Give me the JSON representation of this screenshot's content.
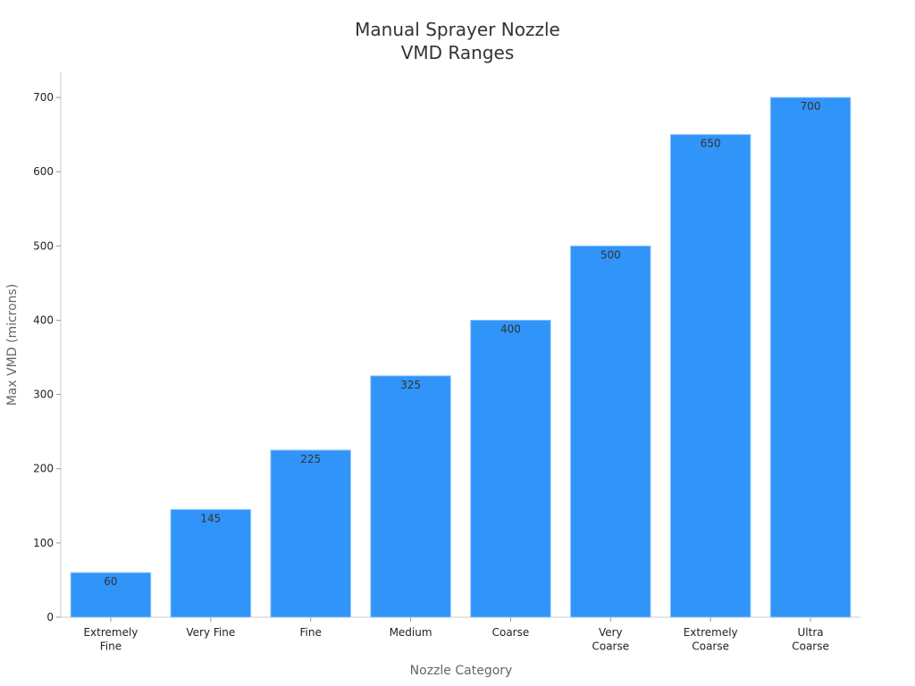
{
  "chart_data": {
    "type": "bar",
    "title": "Manual Sprayer Nozzle\nVMD Ranges",
    "xlabel": "Nozzle Category",
    "ylabel": "Max VMD (microns)",
    "categories": [
      "Extremely\nFine",
      "Very Fine",
      "Fine",
      "Medium",
      "Coarse",
      "Very\nCoarse",
      "Extremely\nCoarse",
      "Ultra\nCoarse"
    ],
    "values": [
      60,
      145,
      225,
      325,
      400,
      500,
      650,
      700
    ],
    "color": "#3094f9",
    "ylim": [
      0,
      735
    ],
    "yticks": [
      0,
      100,
      200,
      300,
      400,
      500,
      600,
      700
    ],
    "grid": false
  }
}
